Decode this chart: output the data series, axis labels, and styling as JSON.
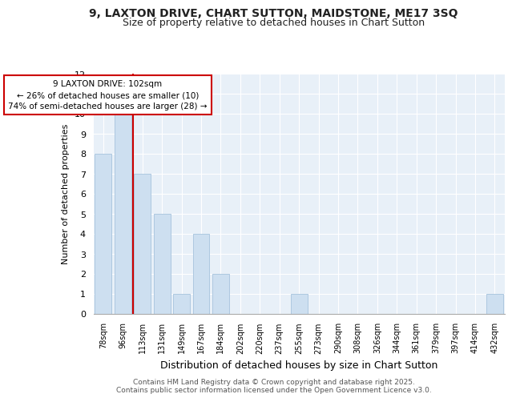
{
  "title1": "9, LAXTON DRIVE, CHART SUTTON, MAIDSTONE, ME17 3SQ",
  "title2": "Size of property relative to detached houses in Chart Sutton",
  "xlabel": "Distribution of detached houses by size in Chart Sutton",
  "ylabel": "Number of detached properties",
  "categories": [
    "78sqm",
    "96sqm",
    "113sqm",
    "131sqm",
    "149sqm",
    "167sqm",
    "184sqm",
    "202sqm",
    "220sqm",
    "237sqm",
    "255sqm",
    "273sqm",
    "290sqm",
    "308sqm",
    "326sqm",
    "344sqm",
    "361sqm",
    "379sqm",
    "397sqm",
    "414sqm",
    "432sqm"
  ],
  "values": [
    8,
    10,
    7,
    5,
    1,
    4,
    2,
    0,
    0,
    0,
    1,
    0,
    0,
    0,
    0,
    0,
    0,
    0,
    0,
    0,
    1
  ],
  "bar_color": "#cddff0",
  "bar_edge_color": "#adc8e0",
  "vline_color": "#cc0000",
  "annotation_title": "9 LAXTON DRIVE: 102sqm",
  "annotation_line1": "← 26% of detached houses are smaller (10)",
  "annotation_line2": "74% of semi-detached houses are larger (28) →",
  "annotation_box_facecolor": "#ffffff",
  "annotation_box_edgecolor": "#cc0000",
  "footer1": "Contains HM Land Registry data © Crown copyright and database right 2025.",
  "footer2": "Contains public sector information licensed under the Open Government Licence v3.0.",
  "ylim": [
    0,
    12
  ],
  "yticks": [
    0,
    1,
    2,
    3,
    4,
    5,
    6,
    7,
    8,
    9,
    10,
    11,
    12
  ],
  "fig_bg": "#ffffff",
  "plot_bg": "#e8f0f8",
  "title1_fontsize": 10,
  "title2_fontsize": 9,
  "ylabel_fontsize": 8,
  "xlabel_fontsize": 9
}
